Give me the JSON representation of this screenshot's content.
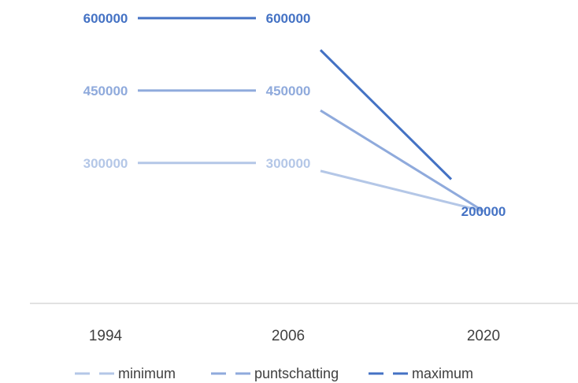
{
  "chart_data": {
    "type": "line",
    "title": "",
    "xlabel": "",
    "ylabel": "",
    "categories": [
      "1994",
      "2006",
      "2020"
    ],
    "ylim": [
      100000,
      650000
    ],
    "grid": false,
    "legend_position": "bottom",
    "data_labels": true,
    "series": [
      {
        "name": "minimum",
        "values": [
          300000,
          300000,
          200000
        ],
        "labels": [
          "300000",
          "300000",
          ""
        ],
        "color": "#b4c7e7"
      },
      {
        "name": "puntschatting",
        "values": [
          450000,
          450000,
          200000
        ],
        "labels": [
          "450000",
          "450000",
          ""
        ],
        "color": "#8faadc"
      },
      {
        "name": "maximum",
        "values": [
          600000,
          600000,
          200000
        ],
        "labels": [
          "600000",
          "600000",
          "200000"
        ],
        "color": "#4472c4"
      }
    ]
  }
}
